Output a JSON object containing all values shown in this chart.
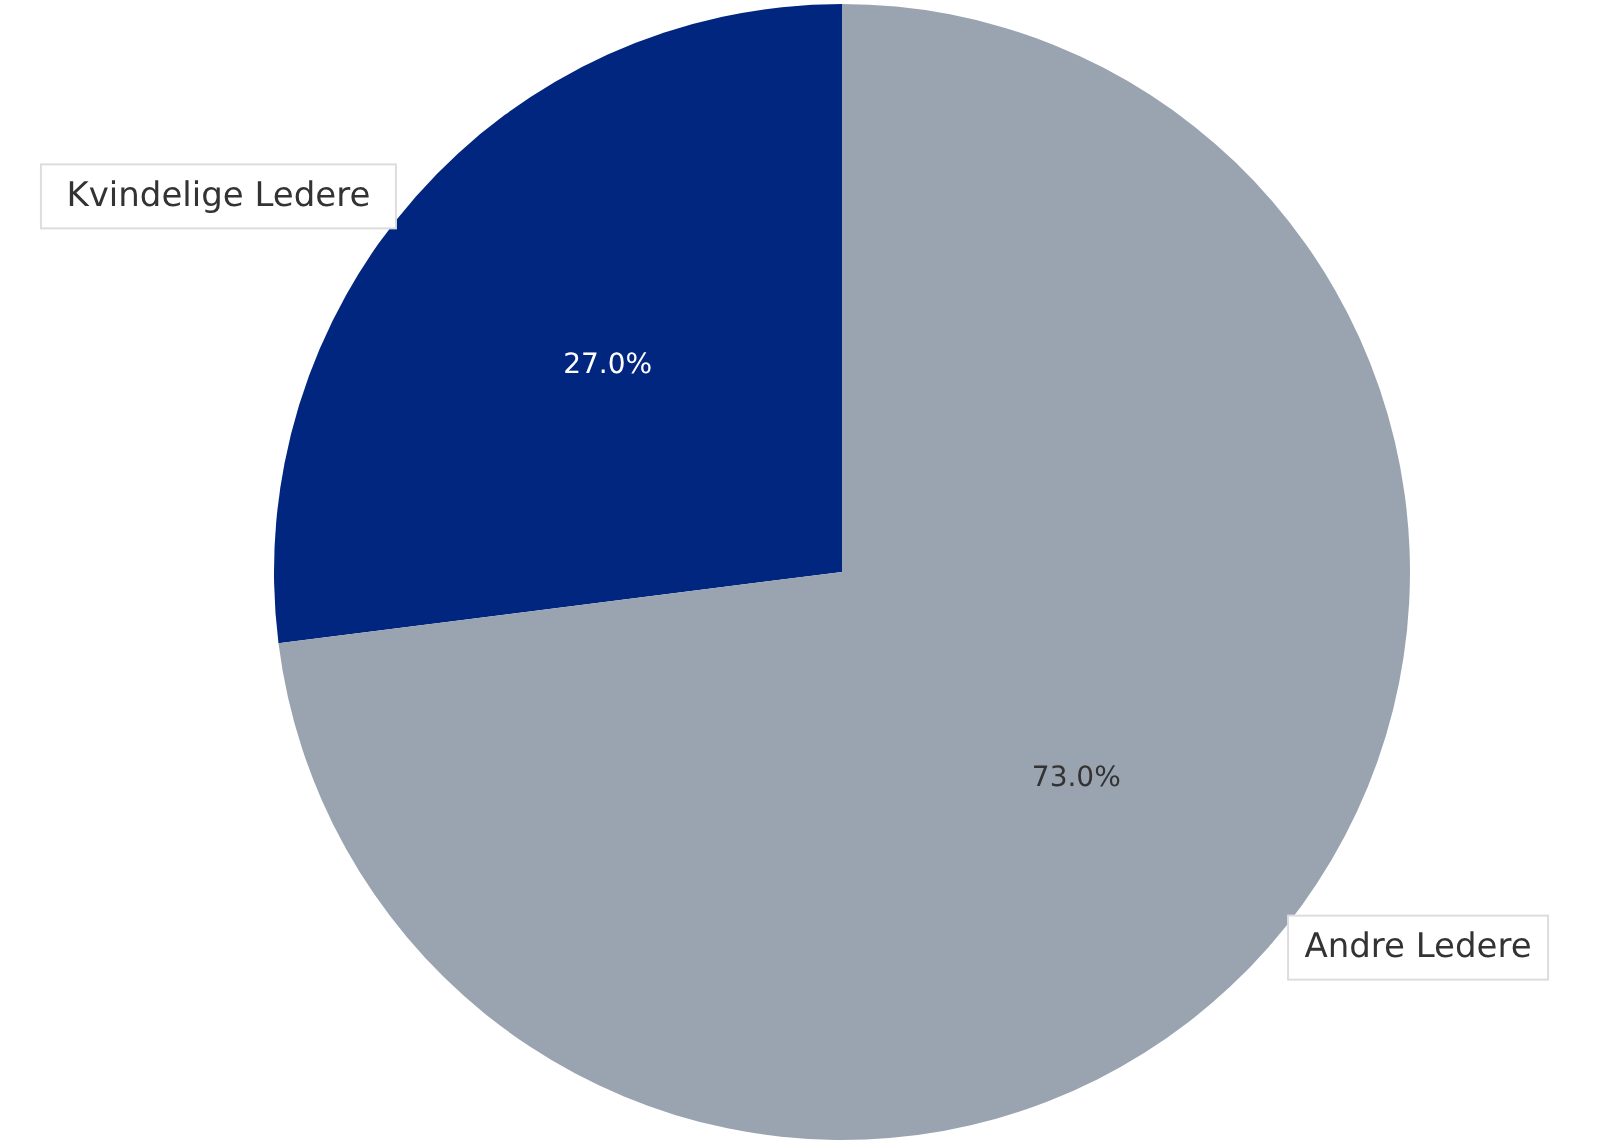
{
  "chart_data": {
    "type": "pie",
    "categories": [
      "Kvindelige Ledere",
      "Andre Ledere"
    ],
    "values": [
      27,
      73
    ],
    "colors": [
      "#00267f",
      "#9aa4b1"
    ],
    "value_labels": [
      "27.0%",
      "73.0%"
    ]
  }
}
